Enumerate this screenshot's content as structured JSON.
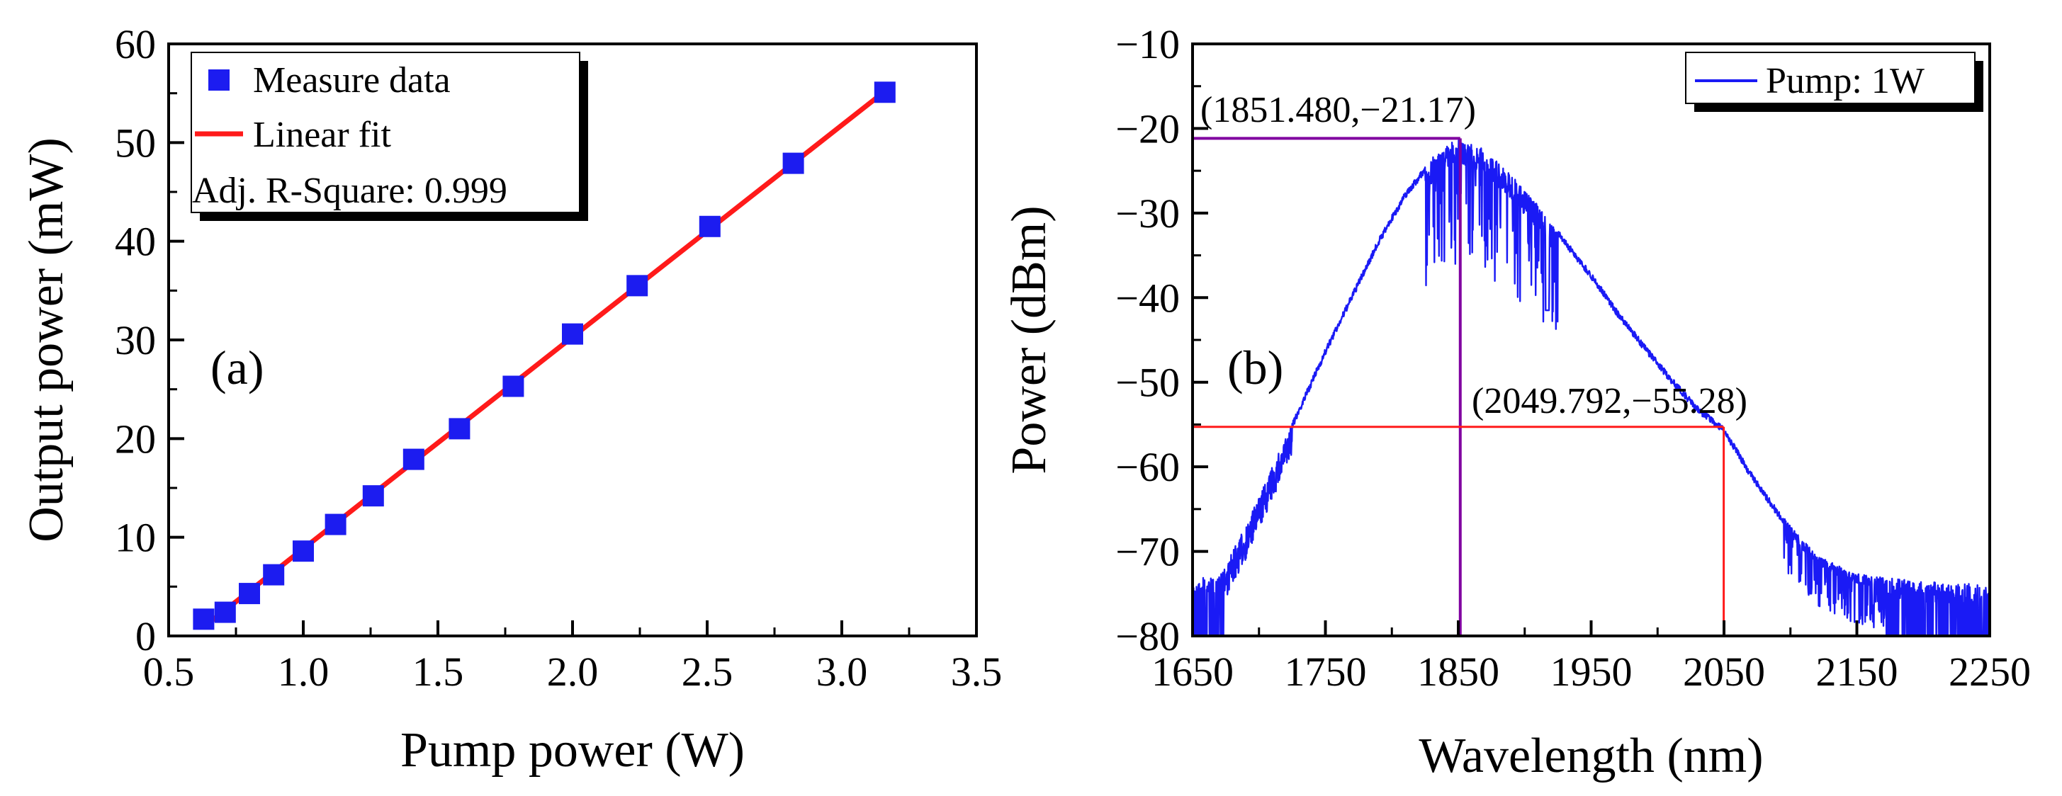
{
  "colors": {
    "data": "#1c1cf0",
    "fit": "#ff1a1a",
    "spectrum": "#1a1af5",
    "purple": "#8000a0",
    "red": "#ff1a1a",
    "axis": "#000000"
  },
  "chart_data": [
    {
      "type": "scatter",
      "panel_label": "(a)",
      "title": "",
      "xlabel": "Pump power (W)",
      "ylabel": "Output power (mW)",
      "xlim": [
        0.5,
        3.5
      ],
      "ylim": [
        0,
        60
      ],
      "xticks": [
        "0.5",
        "1.0",
        "1.5",
        "2.0",
        "2.5",
        "3.0",
        "3.5"
      ],
      "yticks": [
        "0",
        "10",
        "20",
        "30",
        "40",
        "50",
        "60"
      ],
      "series": [
        {
          "name": "Measure data",
          "kind": "points",
          "x": [
            0.63,
            0.71,
            0.8,
            0.89,
            1.0,
            1.12,
            1.26,
            1.41,
            1.58,
            1.78,
            2.0,
            2.24,
            2.51,
            2.82,
            3.16
          ],
          "y": [
            1.7,
            2.4,
            4.3,
            6.2,
            8.6,
            11.3,
            14.2,
            17.9,
            21.0,
            25.3,
            30.6,
            35.5,
            41.5,
            47.9,
            55.1
          ]
        },
        {
          "name": "Linear fit",
          "kind": "line",
          "x": [
            0.63,
            3.16
          ],
          "y": [
            0.9,
            55.2
          ]
        }
      ],
      "legend": {
        "entries": [
          "Measure data",
          "Linear fit"
        ],
        "note": "Adj. R-Square: 0.999",
        "position": "top-left"
      }
    },
    {
      "type": "line",
      "panel_label": "(b)",
      "title": "",
      "xlabel": "Wavelength (nm)",
      "ylabel": "Power (dBm)",
      "xlim": [
        1650,
        2250
      ],
      "ylim": [
        -80,
        -10
      ],
      "xticks": [
        "1650",
        "1750",
        "1850",
        "1950",
        "2050",
        "2150",
        "2250"
      ],
      "yticks": [
        "−10",
        "−20",
        "−30",
        "−40",
        "−50",
        "−60",
        "−70",
        "−80"
      ],
      "series": [
        {
          "name": "Pump: 1W",
          "kind": "spectrum",
          "envelope_x": [
            1650,
            1670,
            1690,
            1710,
            1730,
            1750,
            1770,
            1790,
            1810,
            1830,
            1840,
            1851.48,
            1860,
            1870,
            1890,
            1910,
            1930,
            1950,
            1970,
            1990,
            2010,
            2030,
            2049.792,
            2070,
            2090,
            2100,
            2120,
            2140,
            2160,
            2170,
            2190,
            2210,
            2230,
            2250
          ],
          "envelope_y": [
            -73,
            -73,
            -67,
            -60,
            -53,
            -46,
            -39.5,
            -33,
            -27.5,
            -23.5,
            -22,
            -21.17,
            -21.6,
            -22.6,
            -25.5,
            -29,
            -33,
            -37,
            -41.5,
            -45.5,
            -49.3,
            -52.8,
            -55.28,
            -60.5,
            -65,
            -67,
            -70.5,
            -72,
            -73,
            -73,
            -73.3,
            -73.6,
            -73.8,
            -74
          ]
        }
      ],
      "legend": {
        "entries": [
          "Pump: 1W"
        ],
        "position": "top-right"
      },
      "annotations": [
        {
          "label": "(1851.480,−21.17)",
          "x": 1851.48,
          "y": -21.17,
          "color": "purple"
        },
        {
          "label": "(2049.792,−55.28)",
          "x": 2049.792,
          "y": -55.28,
          "color": "red"
        }
      ]
    }
  ]
}
